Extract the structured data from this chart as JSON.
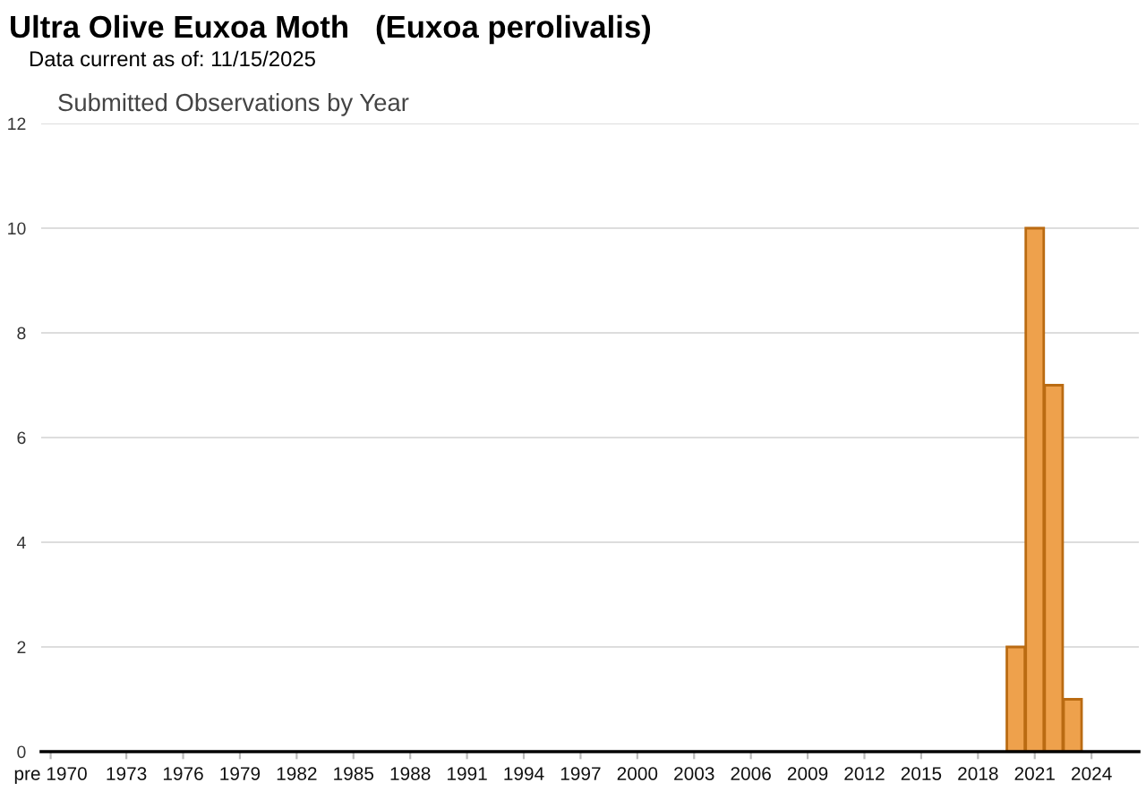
{
  "chart_data": {
    "type": "bar",
    "title": "Ultra Olive Euxoa Moth   (Euxoa perolivalis)",
    "subtitle": "Data current as of: 11/15/2025",
    "annotations": [
      "Submitted Observations by Year"
    ],
    "categories": [
      "pre 1970",
      null,
      null,
      null,
      "1973",
      null,
      null,
      "1976",
      null,
      null,
      "1979",
      null,
      null,
      "1982",
      null,
      null,
      "1985",
      null,
      null,
      "1988",
      null,
      null,
      "1991",
      null,
      null,
      "1994",
      null,
      null,
      "1997",
      null,
      null,
      "2000",
      null,
      null,
      "2003",
      null,
      null,
      "2006",
      null,
      null,
      "2009",
      null,
      null,
      "2012",
      null,
      null,
      "2015",
      null,
      null,
      "2018",
      null,
      null,
      "2021",
      null,
      null,
      "2024",
      null,
      null
    ],
    "values": [
      0,
      0,
      0,
      0,
      0,
      0,
      0,
      0,
      0,
      0,
      0,
      0,
      0,
      0,
      0,
      0,
      0,
      0,
      0,
      0,
      0,
      0,
      0,
      0,
      0,
      0,
      0,
      0,
      0,
      0,
      0,
      0,
      0,
      0,
      0,
      0,
      0,
      0,
      0,
      0,
      0,
      0,
      0,
      0,
      0,
      0,
      0,
      0,
      0,
      0,
      0,
      2,
      10,
      7,
      1,
      0,
      0,
      0
    ],
    "color": "#eea14c",
    "ylim": [
      0,
      12
    ],
    "yticks": [
      0,
      2,
      4,
      6,
      8,
      10,
      12
    ],
    "grid": "y"
  }
}
